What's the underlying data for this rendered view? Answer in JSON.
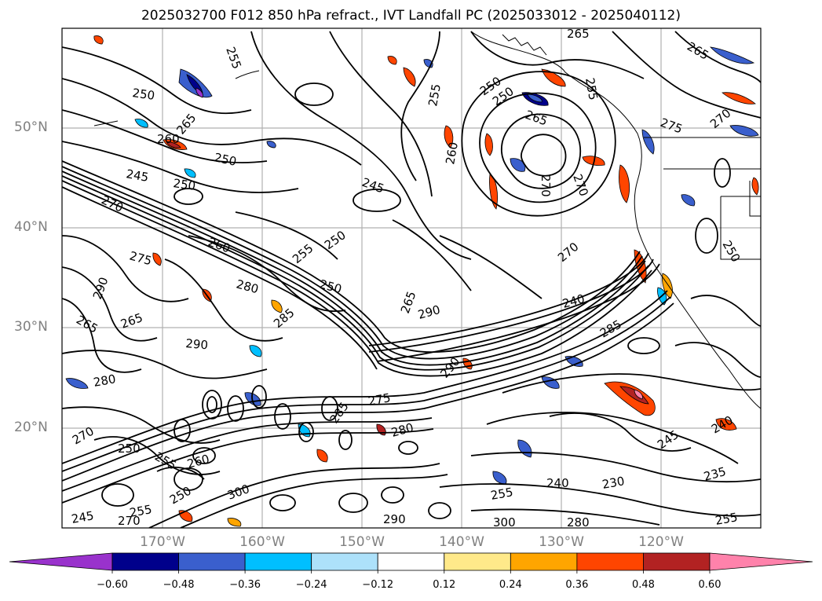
{
  "title": "2025032700 F012 850 hPa refract., IVT Landfall PC (2025033012 - 2025040112)",
  "lat_labels": [
    "50°N",
    "40°N",
    "30°N",
    "20°N"
  ],
  "lon_labels": [
    "170°W",
    "160°W",
    "150°W",
    "140°W",
    "130°W",
    "120°W"
  ],
  "colorbar": {
    "ticks": [
      "−0.60",
      "−0.48",
      "−0.36",
      "−0.24",
      "−0.12",
      "0.12",
      "0.24",
      "0.36",
      "0.48",
      "0.60"
    ],
    "colors": [
      "#9932CC",
      "#00008B",
      "#3A5FCD",
      "#00BFFF",
      "#ADE1FA",
      "#FFFFFF",
      "#FFE98A",
      "#FFA500",
      "#FF4500",
      "#B22222",
      "#FF82AB"
    ]
  },
  "contour_labels": [
    "250",
    "255",
    "265",
    "260",
    "250",
    "245",
    "250",
    "270",
    "260",
    "275",
    "290",
    "265",
    "265",
    "290",
    "280",
    "270",
    "250",
    "255",
    "260",
    "250",
    "245",
    "270",
    "255",
    "250",
    "255",
    "280",
    "250",
    "245",
    "285",
    "265",
    "290",
    "275",
    "285",
    "280",
    "290",
    "255",
    "260",
    "270",
    "270",
    "240",
    "285",
    "270",
    "245",
    "240",
    "230",
    "235",
    "240",
    "255",
    "290",
    "300",
    "280",
    "300",
    "255",
    "265",
    "255",
    "265",
    "250",
    "250",
    "265",
    "275",
    "270",
    "250"
  ]
}
